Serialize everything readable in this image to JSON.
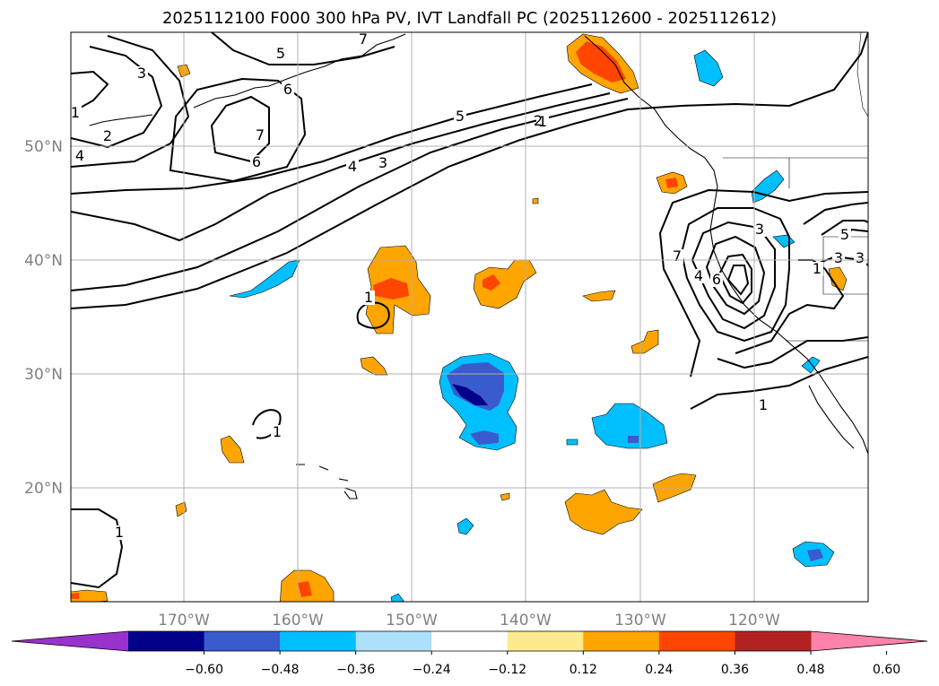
{
  "title": "2025112100 F000 300 hPa PV, IVT Landfall PC (2025112600 - 2025112612)",
  "map": {
    "lon_range": [
      -180,
      -110
    ],
    "lat_range": [
      10,
      60
    ],
    "lat_labels": [
      "20°N",
      "30°N",
      "40°N",
      "50°N"
    ],
    "lat_values": [
      20,
      30,
      40,
      50
    ],
    "lon_labels": [
      "170°W",
      "160°W",
      "150°W",
      "140°W",
      "130°W",
      "120°W"
    ],
    "lon_values": [
      -170,
      -160,
      -150,
      -140,
      -130,
      -120
    ],
    "grid": true
  },
  "colorbar": {
    "ticks": [
      "−0.60",
      "−0.48",
      "−0.36",
      "−0.24",
      "−0.12",
      "0.12",
      "0.24",
      "0.36",
      "0.48",
      "0.60"
    ],
    "colors": [
      "#9932cc",
      "#00008b",
      "#3a5bcd",
      "#00bfff",
      "#ade0fa",
      "#ffffff",
      "#fcea8e",
      "#ffa500",
      "#ff4500",
      "#b22222",
      "#ff82ab"
    ],
    "extend": "both"
  },
  "pv_contour_labels": [
    "1",
    "2",
    "3",
    "4",
    "5",
    "6",
    "7",
    "1",
    "2",
    "3",
    "4",
    "5",
    "6",
    "7",
    "1",
    "1",
    "1",
    "1",
    "3",
    "5",
    "3",
    "4",
    "6",
    "1",
    "7",
    "3"
  ]
}
